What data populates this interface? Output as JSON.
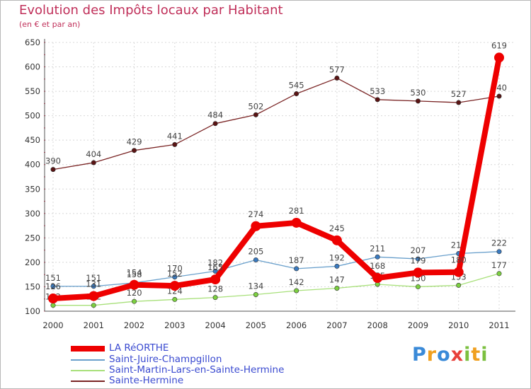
{
  "chart_data": {
    "type": "line",
    "title": "Evolution des Impôts locaux par Habitant",
    "subtitle": "(en € et par an)",
    "xlabel": "",
    "ylabel": "",
    "categories": [
      "2000",
      "2001",
      "2002",
      "2003",
      "2004",
      "2005",
      "2006",
      "2007",
      "2008",
      "2009",
      "2010",
      "2011"
    ],
    "ylim": [
      100,
      650
    ],
    "yticks": [
      "100",
      "150",
      "200",
      "250",
      "300",
      "350",
      "400",
      "450",
      "500",
      "550",
      "600",
      "650"
    ],
    "grid": true,
    "series": [
      {
        "name": "Sainte-Hermine",
        "color": "#7a2424",
        "marker": "#5a1414",
        "values": [
          390,
          404,
          429,
          441,
          484,
          502,
          545,
          577,
          533,
          530,
          527,
          540
        ],
        "labels": [
          "390",
          "404",
          "429",
          "441",
          "484",
          "502",
          "545",
          "577",
          "533",
          "530",
          "527",
          "540"
        ]
      },
      {
        "name": "Saint-Martin-Lars-en-Sainte-Hermine",
        "color": "#a8e07a",
        "marker": "#7cd040",
        "values": [
          112,
          112,
          120,
          124,
          128,
          134,
          142,
          147,
          155,
          150,
          153,
          177
        ],
        "labels": [
          "112",
          "112",
          "120",
          "124",
          "128",
          "134",
          "142",
          "147",
          "155",
          "150",
          "153",
          "177"
        ]
      },
      {
        "name": "Saint-Juire-Champgillon",
        "color": "#6aa0cc",
        "marker": "#3a7ac0",
        "values": [
          151,
          151,
          158,
          170,
          182,
          205,
          187,
          192,
          211,
          207,
          218,
          222
        ],
        "labels": [
          "151",
          "151",
          "158",
          "170",
          "182",
          "205",
          "187",
          "192",
          "211",
          "207",
          "218",
          "222"
        ]
      },
      {
        "name": "LA RéORTHE",
        "color": "#ee0000",
        "marker": "#ee0000",
        "values": [
          126,
          131,
          154,
          152,
          165,
          274,
          281,
          245,
          168,
          179,
          180,
          619
        ],
        "labels": [
          "126",
          "131",
          "154",
          "152",
          "165",
          "274",
          "281",
          "245",
          "168",
          "179",
          "180",
          "619"
        ]
      }
    ],
    "legend": [
      "LA RéORTHE",
      "Saint-Juire-Champgillon",
      "Saint-Martin-Lars-en-Sainte-Hermine",
      "Sainte-Hermine"
    ],
    "legend_placement": "bottom-left"
  },
  "logo": {
    "p": "P",
    "r": "r",
    "o": "o",
    "x": "x",
    "i": "i",
    "t": "t",
    "i2": "i"
  }
}
